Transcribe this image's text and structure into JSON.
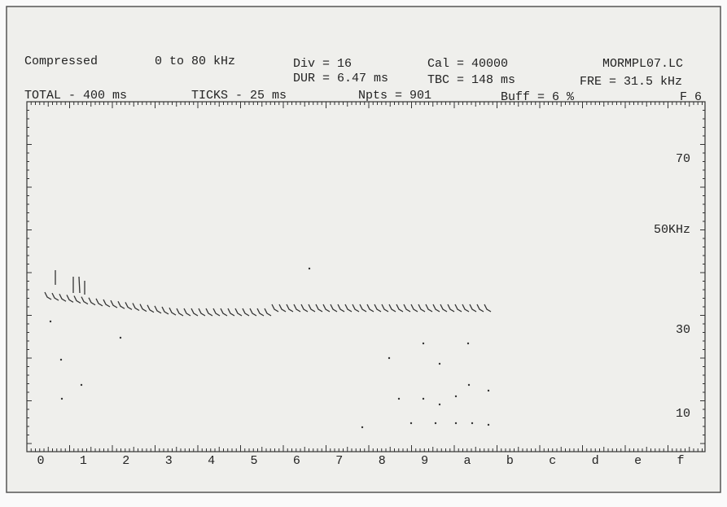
{
  "header": {
    "mode": "Compressed",
    "range": "0 to 80 kHz",
    "div": "Div = 16",
    "cal": "Cal = 40000",
    "file": "MORMPL07.LC",
    "dur": "DUR = 6.47 ms",
    "tbc": "TBC = 148 ms",
    "fre": "FRE = 31.5 kHz",
    "total": "TOTAL - 400 ms",
    "ticks": "TICKS - 25 ms",
    "npts": "Npts = 901",
    "buff": "Buff = 6 %",
    "page": "F 6"
  },
  "y_labels": [
    "70",
    "50KHz",
    "30",
    "10"
  ],
  "x_labels": [
    "0",
    "1",
    "2",
    "3",
    "4",
    "5",
    "6",
    "7",
    "8",
    "9",
    "a",
    "b",
    "c",
    "d",
    "e",
    "f"
  ]
}
